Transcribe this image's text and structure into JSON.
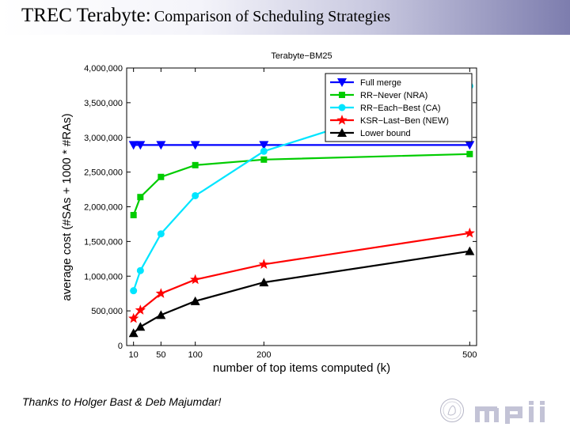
{
  "slide": {
    "title_main": "TREC Terabyte:",
    "title_sub": "Comparison of Scheduling Strategies",
    "credit": "Thanks to Holger Bast & Deb Majumdar!",
    "logo_text": "mpii"
  },
  "chart_data": {
    "type": "line",
    "title": "Terabyte−BM25",
    "xlabel": "number of top items computed (k)",
    "ylabel": "average cost (#SAs + 1000 * #RAs)",
    "x": [
      10,
      20,
      50,
      100,
      200,
      500
    ],
    "xlim": [
      0,
      510
    ],
    "x_ticks": [
      10,
      50,
      100,
      200,
      500
    ],
    "x_tick_labels": [
      "10",
      "50",
      "100",
      "200",
      "500"
    ],
    "ylim": [
      0,
      4000000
    ],
    "y_ticks": [
      0,
      500000,
      1000000,
      1500000,
      2000000,
      2500000,
      3000000,
      3500000,
      4000000
    ],
    "y_tick_labels": [
      "0",
      "500,000",
      "1,000,000",
      "1,500,000",
      "2,000,000",
      "2,500,000",
      "3,000,000",
      "3,500,000",
      "4,000,000"
    ],
    "grid": false,
    "legend_position": "top-right",
    "series": [
      {
        "name": "Full merge",
        "color": "#0000ff",
        "marker": "triangle-down",
        "values": [
          2890000,
          2890000,
          2890000,
          2890000,
          2890000,
          2890000
        ]
      },
      {
        "name": "RR−Never (NRA)",
        "color": "#00cc00",
        "marker": "square",
        "values": [
          1880000,
          2140000,
          2430000,
          2600000,
          2680000,
          2760000
        ]
      },
      {
        "name": "RR−Each−Best (CA)",
        "color": "#00e5ff",
        "marker": "circle",
        "values": [
          790000,
          1080000,
          1610000,
          2160000,
          2800000,
          3740000
        ]
      },
      {
        "name": "KSR−Last−Ben (NEW)",
        "color": "#ff0000",
        "marker": "star",
        "values": [
          390000,
          510000,
          750000,
          950000,
          1170000,
          1620000
        ]
      },
      {
        "name": "Lower bound",
        "color": "#000000",
        "marker": "triangle-up",
        "values": [
          180000,
          270000,
          440000,
          640000,
          910000,
          1360000
        ]
      }
    ]
  }
}
